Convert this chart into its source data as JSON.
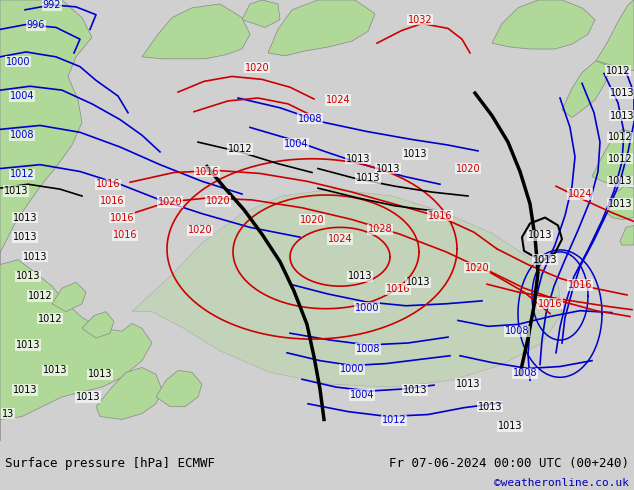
{
  "title_left": "Surface pressure [hPa] ECMWF",
  "title_right": "Fr 07-06-2024 00:00 UTC (00+240)",
  "credit": "©weatheronline.co.uk",
  "bg_map_color": "#d8ecf0",
  "land_color": "#b0d898",
  "border_color": "#888888",
  "blue": "#0000cc",
  "red": "#cc0000",
  "black": "#000000",
  "lfs": 7,
  "title_fs": 9,
  "credit_color": "#0000bb",
  "footer_bg": "#d0d0d0"
}
